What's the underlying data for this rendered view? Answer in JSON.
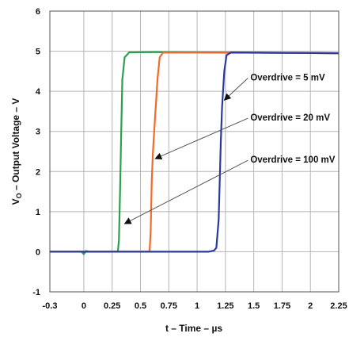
{
  "chart_data": {
    "type": "line",
    "xlabel": "t – Time – µs",
    "ylabel_main": "V",
    "ylabel_sub": "O",
    "ylabel_rest": " – Output Voltage – V",
    "xlim": [
      -0.3,
      2.25
    ],
    "ylim": [
      -1,
      6
    ],
    "x_ticks": [
      -0.3,
      0,
      0.25,
      0.5,
      0.75,
      1,
      1.25,
      1.5,
      1.75,
      2,
      2.25
    ],
    "x_tick_labels": [
      "-0.3",
      "0",
      "0.25",
      "0.5",
      "0.75",
      "1",
      "1.25",
      "1.5",
      "1.75",
      "2",
      "2.25"
    ],
    "y_ticks": [
      -1,
      0,
      1,
      2,
      3,
      4,
      5,
      6
    ],
    "y_tick_labels": [
      "-1",
      "0",
      "1",
      "2",
      "3",
      "4",
      "5",
      "6"
    ],
    "grid": true,
    "series": [
      {
        "name": "Overdrive = 100 mV",
        "color": "#2e9e4f",
        "points": [
          [
            -0.3,
            0.0
          ],
          [
            -0.02,
            0.0
          ],
          [
            0.0,
            -0.06
          ],
          [
            0.02,
            0.02
          ],
          [
            0.05,
            0.0
          ],
          [
            0.3,
            0.0
          ],
          [
            0.31,
            0.3
          ],
          [
            0.32,
            1.5
          ],
          [
            0.33,
            3.0
          ],
          [
            0.34,
            4.3
          ],
          [
            0.36,
            4.85
          ],
          [
            0.4,
            4.97
          ],
          [
            0.6,
            4.98
          ],
          [
            2.25,
            4.95
          ]
        ]
      },
      {
        "name": "Overdrive = 20 mV",
        "color": "#f26a2a",
        "points": [
          [
            -0.3,
            0.0
          ],
          [
            0.58,
            0.0
          ],
          [
            0.59,
            0.5
          ],
          [
            0.6,
            1.8
          ],
          [
            0.61,
            2.5
          ],
          [
            0.63,
            3.4
          ],
          [
            0.65,
            4.3
          ],
          [
            0.67,
            4.85
          ],
          [
            0.7,
            4.97
          ],
          [
            2.25,
            4.95
          ]
        ]
      },
      {
        "name": "Overdrive = 5 mV",
        "color": "#2b3a9a",
        "points": [
          [
            -0.3,
            0.0
          ],
          [
            1.1,
            0.0
          ],
          [
            1.15,
            0.03
          ],
          [
            1.17,
            0.1
          ],
          [
            1.19,
            0.8
          ],
          [
            1.2,
            1.8
          ],
          [
            1.21,
            2.8
          ],
          [
            1.22,
            3.6
          ],
          [
            1.24,
            4.5
          ],
          [
            1.26,
            4.9
          ],
          [
            1.3,
            4.97
          ],
          [
            2.25,
            4.95
          ]
        ]
      }
    ],
    "annotations": [
      {
        "label": "Overdrive = 5 mV",
        "text_at": [
          1.47,
          4.27
        ],
        "arrow_to": [
          1.24,
          3.78
        ]
      },
      {
        "label": "Overdrive = 20 mV",
        "text_at": [
          1.47,
          3.27
        ],
        "arrow_to": [
          0.63,
          2.32
        ]
      },
      {
        "label": "Overdrive = 100 mV",
        "text_at": [
          1.47,
          2.22
        ],
        "arrow_to": [
          0.36,
          0.7
        ]
      }
    ]
  }
}
